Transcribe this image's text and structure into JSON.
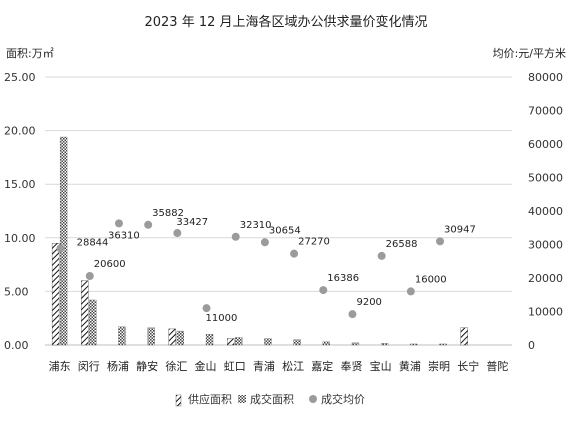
{
  "chart_data": {
    "type": "bar",
    "title": "2023 年 12 月上海各区域办公供求量价变化情况",
    "ylabel_left": "面积:万㎡",
    "ylabel_right": "均价:元/平方米",
    "ylim_left": [
      0,
      25
    ],
    "yticks_left": [
      "0.00",
      "5.00",
      "10.00",
      "15.00",
      "20.00",
      "25.00"
    ],
    "ylim_right": [
      0,
      80000
    ],
    "yticks_right": [
      "0",
      "10000",
      "20000",
      "30000",
      "40000",
      "50000",
      "60000",
      "70000",
      "80000"
    ],
    "categories": [
      "浦东",
      "闵行",
      "杨浦",
      "静安",
      "徐汇",
      "金山",
      "虹口",
      "青浦",
      "松江",
      "嘉定",
      "奉贤",
      "宝山",
      "黄浦",
      "崇明",
      "长宁",
      "普陀"
    ],
    "series": [
      {
        "name": "供应面积",
        "axis": "left",
        "kind": "bar",
        "pattern": "diag",
        "values": [
          9.5,
          6.0,
          0,
          0,
          1.5,
          0,
          0.6,
          0,
          0,
          0,
          0,
          0,
          0,
          0,
          1.6,
          0
        ]
      },
      {
        "name": "成交面积",
        "axis": "left",
        "kind": "bar",
        "pattern": "check",
        "values": [
          19.4,
          4.2,
          1.7,
          1.6,
          1.3,
          1.0,
          0.7,
          0.6,
          0.5,
          0.3,
          0.2,
          0.15,
          0.1,
          0.1,
          0,
          0
        ]
      },
      {
        "name": "成交均价",
        "axis": "right",
        "kind": "point",
        "values": [
          28844,
          20600,
          36310,
          35882,
          33427,
          11000,
          32310,
          30654,
          27270,
          16386,
          9200,
          26588,
          16000,
          30947,
          null,
          null
        ],
        "labels": [
          "28844",
          "20600",
          "36310",
          "35882",
          "33427",
          "11000",
          "32310",
          "30654",
          "27270",
          "16386",
          "9200",
          "26588",
          "16000",
          "30947",
          "",
          ""
        ]
      }
    ],
    "legend": {
      "position": "bottom",
      "items": [
        "供应面积",
        "成交面积",
        "成交均价"
      ]
    },
    "grid": true
  }
}
